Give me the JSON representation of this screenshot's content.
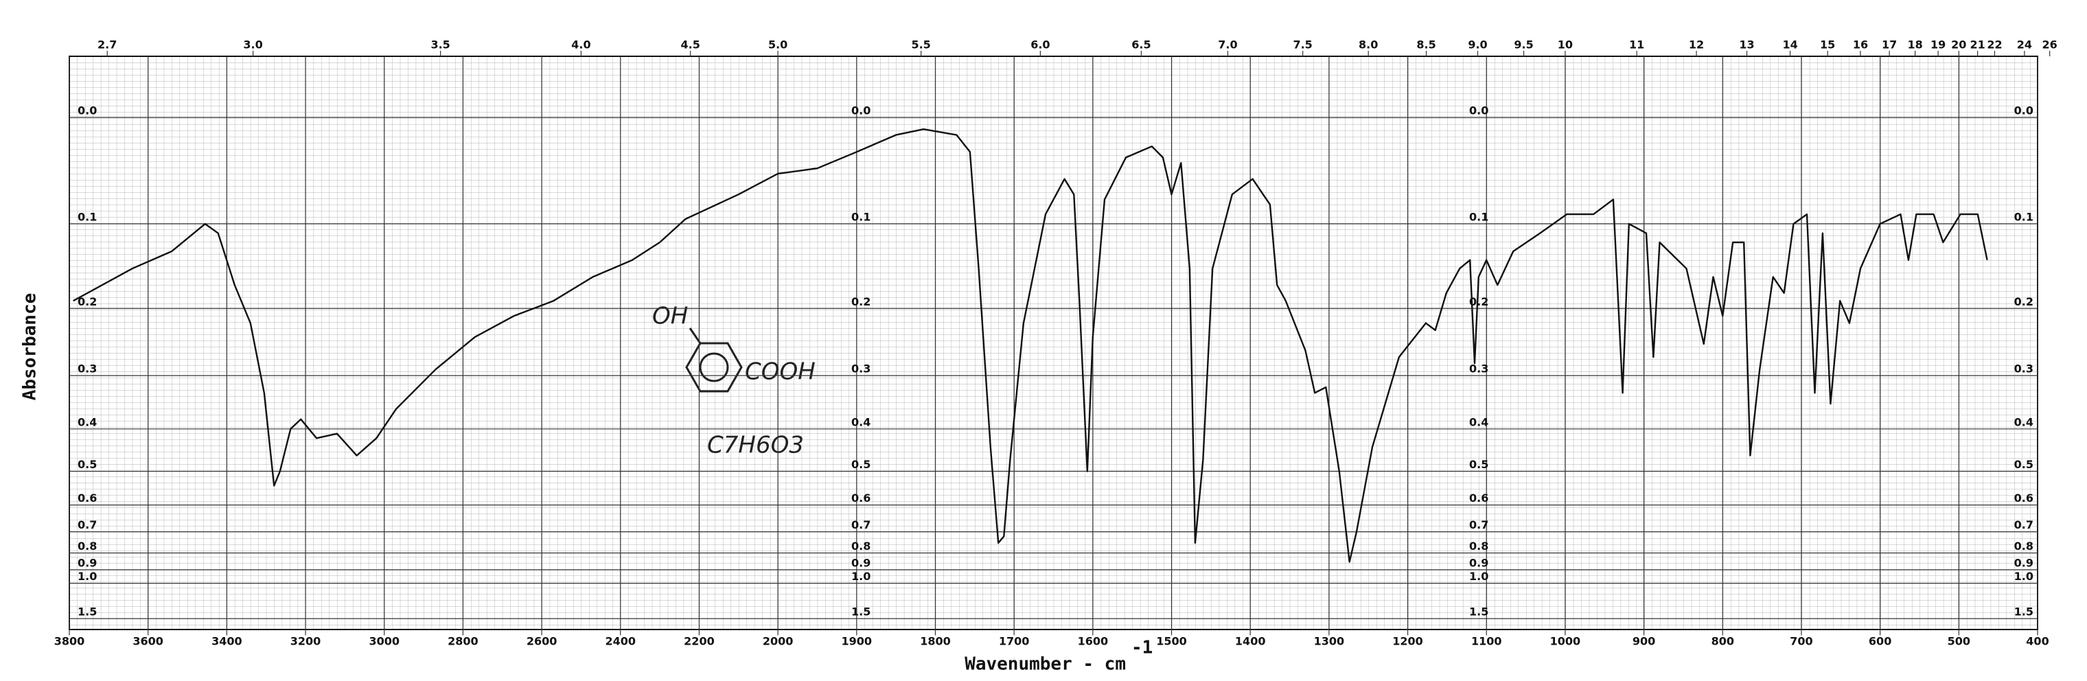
{
  "chart_data": {
    "type": "line",
    "y_label": "Absorbance",
    "x_label": "Wavenumber - cm",
    "x_label_superscript": "-1",
    "annotations": [
      "OH",
      "COOH",
      "C7H6O3"
    ],
    "color": "#111111",
    "grid": true,
    "y_scale": "absorbance",
    "xlim": [
      3800,
      400
    ],
    "xticks": [
      3800,
      3600,
      3400,
      3200,
      3000,
      2800,
      2600,
      2400,
      2200,
      2000,
      1900,
      1800,
      1700,
      1600,
      1500,
      1400,
      1300,
      1200,
      1100,
      1000,
      900,
      800,
      700,
      600,
      500,
      400
    ],
    "x2ticks": [
      2.7,
      {
        "value": 3,
        "label": "3.0"
      },
      3.5,
      {
        "value": 4,
        "label": "4.0"
      },
      4.5,
      {
        "value": 5,
        "label": "5.0"
      },
      5.5,
      {
        "value": 6,
        "label": "6.0"
      },
      6.5,
      {
        "value": 7,
        "label": "7.0"
      },
      7.5,
      {
        "value": 8,
        "label": "8.0"
      },
      8.5,
      {
        "value": 9,
        "label": "9.0"
      },
      9.5,
      10,
      11,
      12,
      13,
      14,
      15,
      16,
      17,
      18,
      19,
      20,
      21,
      22,
      24,
      26
    ],
    "ylim": [
      0,
      2
    ],
    "yticks": [
      {
        "value": 0,
        "label": "0.0"
      },
      0.1,
      0.2,
      0.3,
      0.4,
      0.5,
      0.6,
      0.7,
      0.8,
      0.9,
      {
        "value": 1,
        "label": "1.0"
      },
      1.5
    ],
    "x": [
      3790,
      3640,
      3540,
      3455,
      3422,
      3380,
      3340,
      3305,
      3280,
      3265,
      3238,
      3212,
      3172,
      3120,
      3070,
      3020,
      2970,
      2870,
      2770,
      2670,
      2570,
      2470,
      2370,
      2300,
      2235,
      2100,
      2000,
      1950,
      1900,
      1850,
      1815,
      1773,
      1756,
      1745,
      1730,
      1720,
      1713,
      1705,
      1688,
      1660,
      1636,
      1624,
      1617,
      1607,
      1600,
      1585,
      1558,
      1525,
      1511,
      1500,
      1488,
      1477,
      1470,
      1460,
      1448,
      1423,
      1397,
      1375,
      1366,
      1355,
      1330,
      1318,
      1304,
      1287,
      1274,
      1265,
      1245,
      1211,
      1177,
      1165,
      1151,
      1134,
      1121,
      1115,
      1110,
      1100,
      1086,
      1066,
      1032,
      998,
      964,
      939,
      927,
      919,
      897,
      888,
      880,
      846,
      824,
      812,
      800,
      787,
      773,
      765,
      753,
      736,
      722,
      710,
      693,
      683,
      673,
      663,
      651,
      639,
      625,
      600,
      574,
      564,
      554,
      532,
      520,
      498,
      476,
      464
    ],
    "values": [
      0.19,
      0.15,
      0.13,
      0.1,
      0.11,
      0.17,
      0.22,
      0.33,
      0.54,
      0.5,
      0.4,
      0.38,
      0.42,
      0.41,
      0.46,
      0.42,
      0.36,
      0.29,
      0.24,
      0.21,
      0.19,
      0.16,
      0.14,
      0.12,
      0.095,
      0.07,
      0.05,
      0.045,
      0.03,
      0.015,
      0.01,
      0.015,
      0.03,
      0.15,
      0.44,
      0.75,
      0.72,
      0.47,
      0.22,
      0.09,
      0.055,
      0.07,
      0.19,
      0.5,
      0.24,
      0.075,
      0.035,
      0.025,
      0.035,
      0.07,
      0.04,
      0.15,
      0.75,
      0.47,
      0.15,
      0.07,
      0.055,
      0.08,
      0.17,
      0.19,
      0.26,
      0.33,
      0.32,
      0.5,
      0.85,
      0.7,
      0.44,
      0.27,
      0.22,
      0.23,
      0.18,
      0.15,
      0.14,
      0.28,
      0.16,
      0.14,
      0.17,
      0.13,
      0.11,
      0.09,
      0.09,
      0.075,
      0.33,
      0.1,
      0.11,
      0.27,
      0.12,
      0.15,
      0.25,
      0.16,
      0.21,
      0.12,
      0.12,
      0.46,
      0.29,
      0.16,
      0.18,
      0.1,
      0.09,
      0.33,
      0.11,
      0.35,
      0.19,
      0.22,
      0.15,
      0.1,
      0.09,
      0.14,
      0.09,
      0.09,
      0.12,
      0.09,
      0.09,
      0.14
    ]
  }
}
